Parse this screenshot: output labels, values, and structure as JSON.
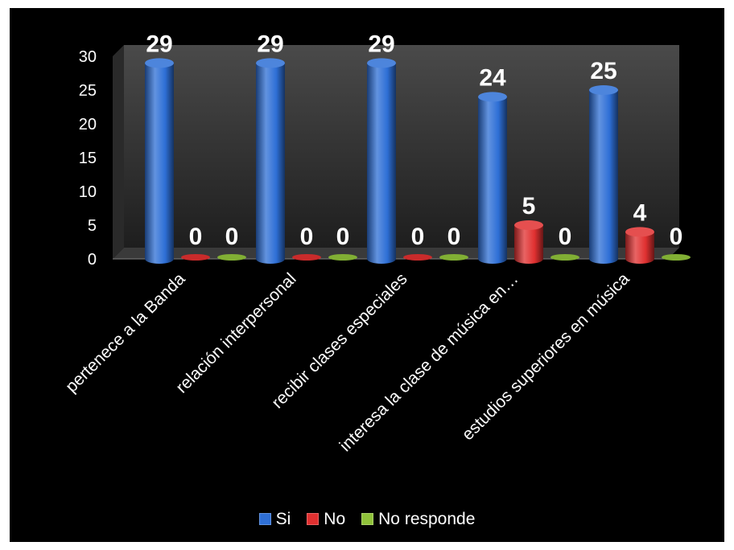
{
  "chart_data": {
    "type": "bar",
    "categories": [
      "pertenece a la Banda",
      "relación interpersonal",
      "recibir clases especiales",
      "interesa la clase de música en…",
      "estudios superiores en música"
    ],
    "series": [
      {
        "name": "Si",
        "values": [
          29,
          29,
          29,
          24,
          25
        ],
        "color": "#2e6fd6"
      },
      {
        "name": "No",
        "values": [
          0,
          0,
          0,
          5,
          4
        ],
        "color": "#e03030"
      },
      {
        "name": "No responde",
        "values": [
          0,
          0,
          0,
          0,
          0
        ],
        "color": "#8fc23a"
      }
    ],
    "yticks": [
      "0",
      "5",
      "10",
      "15",
      "20",
      "25",
      "30"
    ],
    "ylim": [
      0,
      30
    ],
    "legend_position": "bottom",
    "background": "#000000"
  }
}
